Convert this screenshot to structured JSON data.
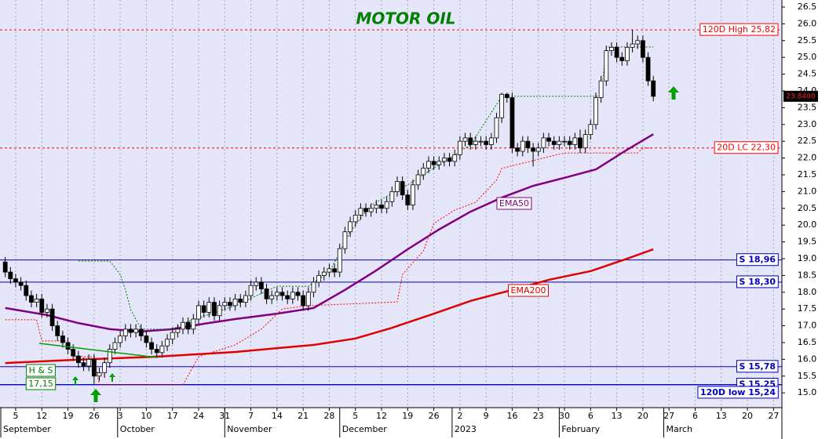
{
  "chart_data": {
    "type": "candlestick",
    "title": "MOTOR OIL",
    "up_color": "#ffffff",
    "down_color": "#000000",
    "x": [
      -2,
      -1,
      0,
      1,
      2,
      3,
      4,
      5,
      6,
      7,
      8,
      9,
      10,
      11,
      12,
      13,
      14,
      15,
      16,
      17,
      18,
      19,
      20,
      21,
      22,
      23,
      24,
      25,
      26,
      27,
      28,
      29,
      30,
      31,
      32,
      33,
      34,
      35,
      36,
      37,
      38,
      39,
      40,
      41,
      42,
      43,
      44,
      45,
      46,
      47,
      48,
      49,
      50,
      51,
      52,
      53,
      54,
      55,
      56,
      57,
      58,
      59,
      60,
      61,
      62,
      63,
      64,
      65,
      66,
      67,
      68,
      69,
      70,
      71,
      72,
      73,
      74,
      75,
      76,
      77,
      78,
      79,
      80,
      81,
      82,
      83,
      84,
      85,
      86,
      87,
      88,
      89,
      90,
      91,
      92,
      93,
      94,
      95,
      96,
      97,
      98,
      99,
      100,
      101,
      102,
      103,
      104,
      105,
      106,
      107,
      108,
      109,
      110,
      111,
      112,
      113,
      114,
      115,
      116,
      117,
      118,
      119,
      120,
      121,
      122
    ],
    "open": [
      18.9,
      18.6,
      18.4,
      18.3,
      18.2,
      17.9,
      17.7,
      17.8,
      17.4,
      17.5,
      17.0,
      16.7,
      16.5,
      16.3,
      16.1,
      15.9,
      15.8,
      16.0,
      15.5,
      15.6,
      15.9,
      16.3,
      16.5,
      16.7,
      16.9,
      16.8,
      16.9,
      16.7,
      16.5,
      16.3,
      16.2,
      16.4,
      16.6,
      16.8,
      16.9,
      17.1,
      16.9,
      17.2,
      17.6,
      17.4,
      17.7,
      17.3,
      17.6,
      17.7,
      17.6,
      17.8,
      17.7,
      17.9,
      18.2,
      18.3,
      18.1,
      17.8,
      17.9,
      18.0,
      17.9,
      17.8,
      18.0,
      17.9,
      17.6,
      18.0,
      18.3,
      18.5,
      18.6,
      18.7,
      18.6,
      19.3,
      19.8,
      20.1,
      20.3,
      20.5,
      20.4,
      20.5,
      20.6,
      20.5,
      20.7,
      21.0,
      21.3,
      20.9,
      20.6,
      21.2,
      21.5,
      21.7,
      21.9,
      21.8,
      21.9,
      22.0,
      21.9,
      22.1,
      22.5,
      22.6,
      22.4,
      22.5,
      22.5,
      22.4,
      22.6,
      23.2,
      23.9,
      23.8,
      22.3,
      22.2,
      22.5,
      22.3,
      22.2,
      22.3,
      22.6,
      22.5,
      22.4,
      22.5,
      22.5,
      22.4,
      22.6,
      22.3,
      22.7,
      23.0,
      23.8,
      24.3,
      25.2,
      25.3,
      25.0,
      24.9,
      25.3,
      25.4,
      25.5,
      25.0,
      24.3
    ],
    "high": [
      19.05,
      18.75,
      18.55,
      18.45,
      18.35,
      18.05,
      17.95,
      17.95,
      17.65,
      17.65,
      17.15,
      16.85,
      16.65,
      16.45,
      16.25,
      16.05,
      16.15,
      16.15,
      15.75,
      16.05,
      16.45,
      16.65,
      16.85,
      17.05,
      17.05,
      17.05,
      17.05,
      16.85,
      16.65,
      16.45,
      16.55,
      16.75,
      16.95,
      17.05,
      17.25,
      17.25,
      17.35,
      17.75,
      17.75,
      17.85,
      17.85,
      17.75,
      17.85,
      17.85,
      17.95,
      17.95,
      18.05,
      18.35,
      18.45,
      18.45,
      18.25,
      18.05,
      18.15,
      18.15,
      18.05,
      18.15,
      18.15,
      18.05,
      18.15,
      18.45,
      18.65,
      18.75,
      18.85,
      18.85,
      19.45,
      19.95,
      20.25,
      20.45,
      20.65,
      20.65,
      20.65,
      20.75,
      20.75,
      20.85,
      21.15,
      21.45,
      21.45,
      21.05,
      21.35,
      21.65,
      21.85,
      22.05,
      22.05,
      22.05,
      22.15,
      22.15,
      22.25,
      22.65,
      22.75,
      22.75,
      22.65,
      22.65,
      22.65,
      22.75,
      23.35,
      23.95,
      23.95,
      23.95,
      22.45,
      22.65,
      22.65,
      22.45,
      22.45,
      22.75,
      22.75,
      22.65,
      22.65,
      22.65,
      22.65,
      22.75,
      22.85,
      22.85,
      23.15,
      23.95,
      24.45,
      25.35,
      25.45,
      25.45,
      25.15,
      25.45,
      25.82,
      25.65,
      25.65,
      25.15,
      24.45
    ],
    "low": [
      18.45,
      18.25,
      18.15,
      18.05,
      17.75,
      17.55,
      17.55,
      17.25,
      17.25,
      16.85,
      16.55,
      16.35,
      16.15,
      15.95,
      15.75,
      15.65,
      15.65,
      15.24,
      15.35,
      15.45,
      15.75,
      16.15,
      16.35,
      16.55,
      16.65,
      16.65,
      16.55,
      16.35,
      16.15,
      16.05,
      16.05,
      16.25,
      16.45,
      16.65,
      16.75,
      16.75,
      16.75,
      17.05,
      17.25,
      17.25,
      17.15,
      17.15,
      17.45,
      17.45,
      17.45,
      17.55,
      17.55,
      17.75,
      18.05,
      17.95,
      17.65,
      17.65,
      17.75,
      17.75,
      17.65,
      17.65,
      17.75,
      17.45,
      17.45,
      17.85,
      18.15,
      18.35,
      18.45,
      18.45,
      18.45,
      19.15,
      19.65,
      19.95,
      20.15,
      20.25,
      20.25,
      20.35,
      20.35,
      20.35,
      20.55,
      20.85,
      20.75,
      20.45,
      20.45,
      21.05,
      21.35,
      21.55,
      21.65,
      21.65,
      21.75,
      21.75,
      21.75,
      21.95,
      22.35,
      22.25,
      22.25,
      22.35,
      22.25,
      22.25,
      22.45,
      23.05,
      23.65,
      22.15,
      22.05,
      22.05,
      22.15,
      21.75,
      22.05,
      22.15,
      22.35,
      22.25,
      22.25,
      22.35,
      22.25,
      22.25,
      22.15,
      22.15,
      22.55,
      22.85,
      23.65,
      24.15,
      25.05,
      24.85,
      24.75,
      24.75,
      25.15,
      25.25,
      24.85,
      24.15,
      23.69
    ],
    "close": [
      18.6,
      18.4,
      18.3,
      18.2,
      17.9,
      17.7,
      17.8,
      17.4,
      17.5,
      17.0,
      16.7,
      16.5,
      16.3,
      16.1,
      15.9,
      15.8,
      16.0,
      15.5,
      15.6,
      15.9,
      16.3,
      16.5,
      16.7,
      16.9,
      16.8,
      16.9,
      16.7,
      16.5,
      16.3,
      16.2,
      16.4,
      16.6,
      16.8,
      16.9,
      17.1,
      16.9,
      17.2,
      17.6,
      17.4,
      17.7,
      17.3,
      17.6,
      17.7,
      17.6,
      17.8,
      17.7,
      17.9,
      18.2,
      18.3,
      18.1,
      17.8,
      17.9,
      18.0,
      17.9,
      17.8,
      18.0,
      17.9,
      17.6,
      18.0,
      18.3,
      18.5,
      18.6,
      18.7,
      18.6,
      19.3,
      19.8,
      20.1,
      20.3,
      20.5,
      20.4,
      20.5,
      20.6,
      20.5,
      20.7,
      21.0,
      21.3,
      20.9,
      20.6,
      21.2,
      21.5,
      21.7,
      21.9,
      21.8,
      21.9,
      22.0,
      21.9,
      22.1,
      22.5,
      22.6,
      22.4,
      22.5,
      22.5,
      22.4,
      22.6,
      23.2,
      23.9,
      23.8,
      22.3,
      22.2,
      22.5,
      22.3,
      22.2,
      22.3,
      22.6,
      22.5,
      22.4,
      22.5,
      22.5,
      22.4,
      22.6,
      22.3,
      22.7,
      23.0,
      23.8,
      24.3,
      25.2,
      25.3,
      25.0,
      24.9,
      25.3,
      25.4,
      25.5,
      25.0,
      24.3,
      23.84
    ],
    "lines": [
      {
        "name": "EMA50",
        "color": "#800080",
        "x": [
          -2,
          6,
          12,
          18,
          24,
          30,
          36,
          42,
          50,
          57,
          63,
          69,
          75,
          81,
          87,
          93,
          99,
          105,
          111,
          117,
          122
        ],
        "values": [
          17.53,
          17.32,
          17.08,
          16.9,
          16.83,
          16.9,
          17.06,
          17.2,
          17.36,
          17.53,
          18.07,
          18.65,
          19.28,
          19.87,
          20.4,
          20.82,
          21.17,
          21.41,
          21.66,
          22.25,
          22.71
        ]
      },
      {
        "name": "EMA200",
        "color": "#e00000",
        "x": [
          -2,
          12,
          27,
          42,
          57,
          65,
          72,
          80,
          87,
          95,
          102,
          110,
          117,
          122
        ],
        "values": [
          15.89,
          15.99,
          16.08,
          16.22,
          16.43,
          16.62,
          16.94,
          17.36,
          17.74,
          18.07,
          18.37,
          18.63,
          19.0,
          19.28
        ]
      },
      {
        "color": "#ff0000",
        "dash": true,
        "x": [
          -2,
          4,
          5,
          10,
          11,
          15,
          16,
          32,
          35,
          42,
          47,
          51,
          56,
          73,
          74,
          78,
          80,
          84,
          88,
          92,
          93,
          102,
          105,
          119,
          120,
          122
        ],
        "values": [
          17.18,
          17.18,
          16.55,
          16.55,
          16.08,
          16.08,
          15.24,
          15.24,
          16.08,
          16.43,
          16.9,
          17.5,
          17.6,
          17.71,
          18.53,
          19.23,
          20.05,
          20.45,
          20.68,
          21.34,
          21.69,
          22.04,
          22.15,
          22.15,
          22.3,
          22.3
        ]
      },
      {
        "color": "#008000",
        "dash": true,
        "x": [
          12,
          18,
          20,
          21,
          22,
          24,
          30,
          33,
          42,
          50,
          56,
          60,
          64,
          68,
          75,
          80,
          87,
          93,
          112,
          113,
          122
        ],
        "values": [
          18.93,
          18.93,
          18.53,
          18.07,
          17.48,
          16.9,
          16.9,
          17.13,
          17.6,
          18.18,
          18.18,
          18.6,
          19.8,
          20.6,
          21.2,
          21.7,
          22.39,
          23.84,
          23.84,
          25.31,
          25.31
        ]
      }
    ],
    "levels": [
      {
        "label": "120D High 25,82",
        "value": 25.82,
        "color": "#ff0000",
        "dash": true
      },
      {
        "label": "20D LC 22,30",
        "value": 22.3,
        "color": "#ff0000",
        "dash": true
      },
      {
        "label": "S 18,96",
        "value": 18.96,
        "color": "#0000c0"
      },
      {
        "label": "S 18,30",
        "value": 18.3,
        "color": "#0000c0"
      },
      {
        "label": "S 15,78",
        "value": 15.78,
        "color": "#0000c0"
      },
      {
        "label": "S 15,25",
        "value": 15.25,
        "color": "#0000c0"
      },
      {
        "label": "120D low 15,24",
        "value": 15.24,
        "color": "#0000c0"
      }
    ],
    "annotations": [
      {
        "text": "H & S",
        "color": "#008000"
      },
      {
        "text": "17,15",
        "color": "#008000"
      },
      {
        "text": "EMA50",
        "color": "#800080"
      },
      {
        "text": "EMA200",
        "color": "#e00000"
      }
    ],
    "last_price": {
      "value": 23.84,
      "label": "23.8400"
    },
    "xlim": [
      -3,
      146.6
    ],
    "ylim": [
      14.56,
      26.71
    ],
    "yticks": [
      {
        "value": 15,
        "label": "15.0"
      },
      {
        "value": 15.5,
        "label": "15.5"
      },
      {
        "value": 16,
        "label": "16.0"
      },
      {
        "value": 16.5,
        "label": "16.5"
      },
      {
        "value": 17,
        "label": "17.0"
      },
      {
        "value": 17.5,
        "label": "17.5"
      },
      {
        "value": 18,
        "label": "18.0"
      },
      {
        "value": 18.5,
        "label": "18.5"
      },
      {
        "value": 19,
        "label": "19.0"
      },
      {
        "value": 19.5,
        "label": "19.5"
      },
      {
        "value": 20,
        "label": "20.0"
      },
      {
        "value": 20.5,
        "label": "20.5"
      },
      {
        "value": 21,
        "label": "21.0"
      },
      {
        "value": 21.5,
        "label": "21.5"
      },
      {
        "value": 22,
        "label": "22.0"
      },
      {
        "value": 22.5,
        "label": "22.5"
      },
      {
        "value": 23,
        "label": "23.0"
      },
      {
        "value": 23.5,
        "label": "23.5"
      },
      {
        "value": 24,
        "label": "24.0"
      },
      {
        "value": 24.5,
        "label": "24.5"
      },
      {
        "value": 25,
        "label": "25.0"
      },
      {
        "value": 25.5,
        "label": "25.5"
      },
      {
        "value": 26,
        "label": "26.0"
      },
      {
        "value": 26.5,
        "label": "26.5"
      }
    ],
    "xticks": [
      {
        "value": 0,
        "label": "5"
      },
      {
        "value": 5,
        "label": "12"
      },
      {
        "value": 10,
        "label": "19"
      },
      {
        "value": 15,
        "label": "26"
      },
      {
        "value": 20,
        "label": "3"
      },
      {
        "value": 25,
        "label": "10"
      },
      {
        "value": 30,
        "label": "17"
      },
      {
        "value": 35,
        "label": "24"
      },
      {
        "value": 40,
        "label": "31"
      },
      {
        "value": 45,
        "label": "7"
      },
      {
        "value": 50,
        "label": "14"
      },
      {
        "value": 55,
        "label": "21"
      },
      {
        "value": 60,
        "label": "28"
      },
      {
        "value": 65,
        "label": "5"
      },
      {
        "value": 70,
        "label": "12"
      },
      {
        "value": 75,
        "label": "19"
      },
      {
        "value": 80,
        "label": "26"
      },
      {
        "value": 85,
        "label": "2"
      },
      {
        "value": 90,
        "label": "9"
      },
      {
        "value": 95,
        "label": "16"
      },
      {
        "value": 100,
        "label": "23"
      },
      {
        "value": 105,
        "label": "30"
      },
      {
        "value": 110,
        "label": "6"
      },
      {
        "value": 115,
        "label": "13"
      },
      {
        "value": 120,
        "label": "20"
      },
      {
        "value": 125,
        "label": "27"
      },
      {
        "value": 130,
        "label": "6"
      },
      {
        "value": 135,
        "label": "13"
      },
      {
        "value": 140,
        "label": "20"
      },
      {
        "value": 145,
        "label": "27"
      }
    ],
    "xmonths": [
      {
        "value": -3,
        "label": "September"
      },
      {
        "value": 19.5,
        "label": "October"
      },
      {
        "value": 40,
        "label": "November"
      },
      {
        "value": 62,
        "label": "December"
      },
      {
        "value": 83.5,
        "label": "2023"
      },
      {
        "value": 104,
        "label": "February"
      },
      {
        "value": 124,
        "label": "March"
      }
    ],
    "grid": true
  }
}
